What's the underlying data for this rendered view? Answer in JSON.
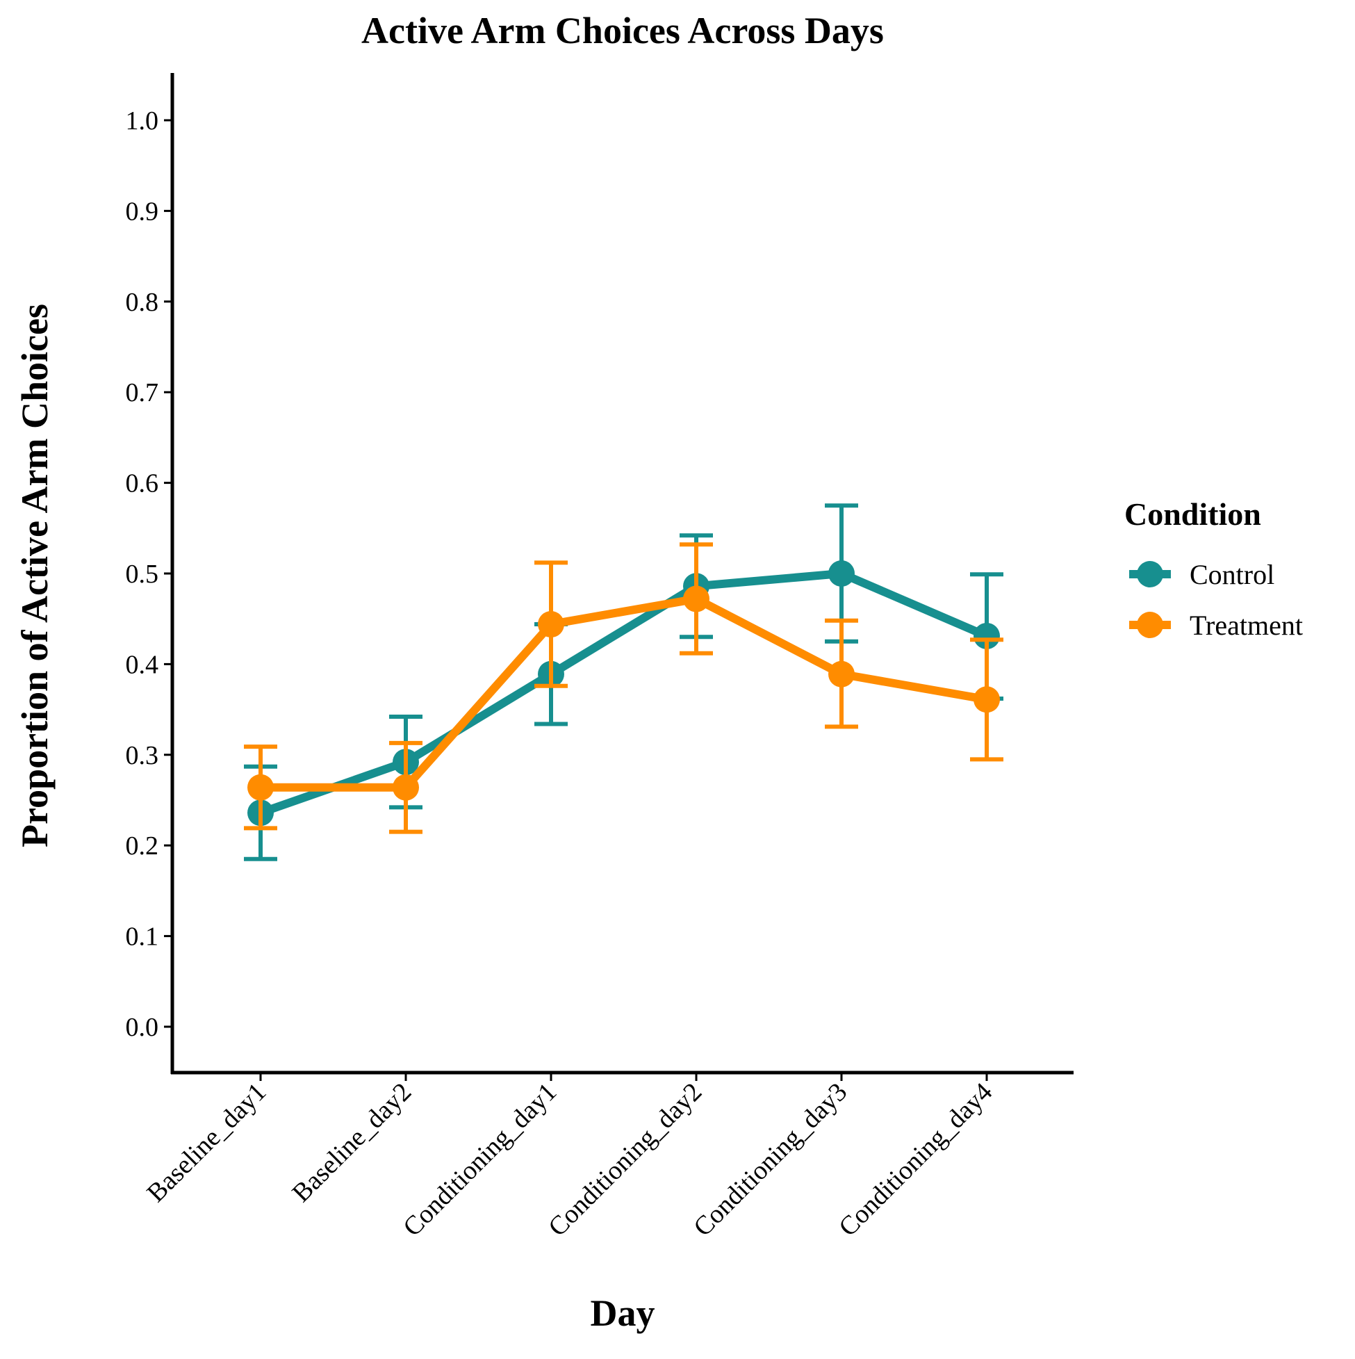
{
  "chart_data": {
    "type": "line",
    "title": "Active Arm Choices Across Days",
    "xlabel": "Day",
    "ylabel": "Proportion of Active Arm Choices",
    "categories": [
      "Baseline_day1",
      "Baseline_day2",
      "Conditioning_day1",
      "Conditioning_day2",
      "Conditioning_day3",
      "Conditioning_day4"
    ],
    "ylim": [
      -0.05,
      1.05
    ],
    "yticks": [
      "0.0",
      "0.1",
      "0.2",
      "0.3",
      "0.4",
      "0.5",
      "0.6",
      "0.7",
      "0.8",
      "0.9",
      "1.0"
    ],
    "grid": false,
    "legend": {
      "title": "Condition",
      "position": "right"
    },
    "series": [
      {
        "name": "Control",
        "color": "#178f8f",
        "values": [
          0.236,
          0.292,
          0.389,
          0.486,
          0.5,
          0.431
        ],
        "error_low": [
          0.185,
          0.242,
          0.334,
          0.43,
          0.425,
          0.362
        ],
        "error_high": [
          0.287,
          0.342,
          0.444,
          0.542,
          0.575,
          0.499
        ]
      },
      {
        "name": "Treatment",
        "color": "#ff8c00",
        "values": [
          0.264,
          0.264,
          0.444,
          0.472,
          0.389,
          0.361
        ],
        "error_low": [
          0.219,
          0.215,
          0.376,
          0.412,
          0.331,
          0.295
        ],
        "error_high": [
          0.309,
          0.313,
          0.512,
          0.532,
          0.448,
          0.427
        ]
      }
    ]
  }
}
